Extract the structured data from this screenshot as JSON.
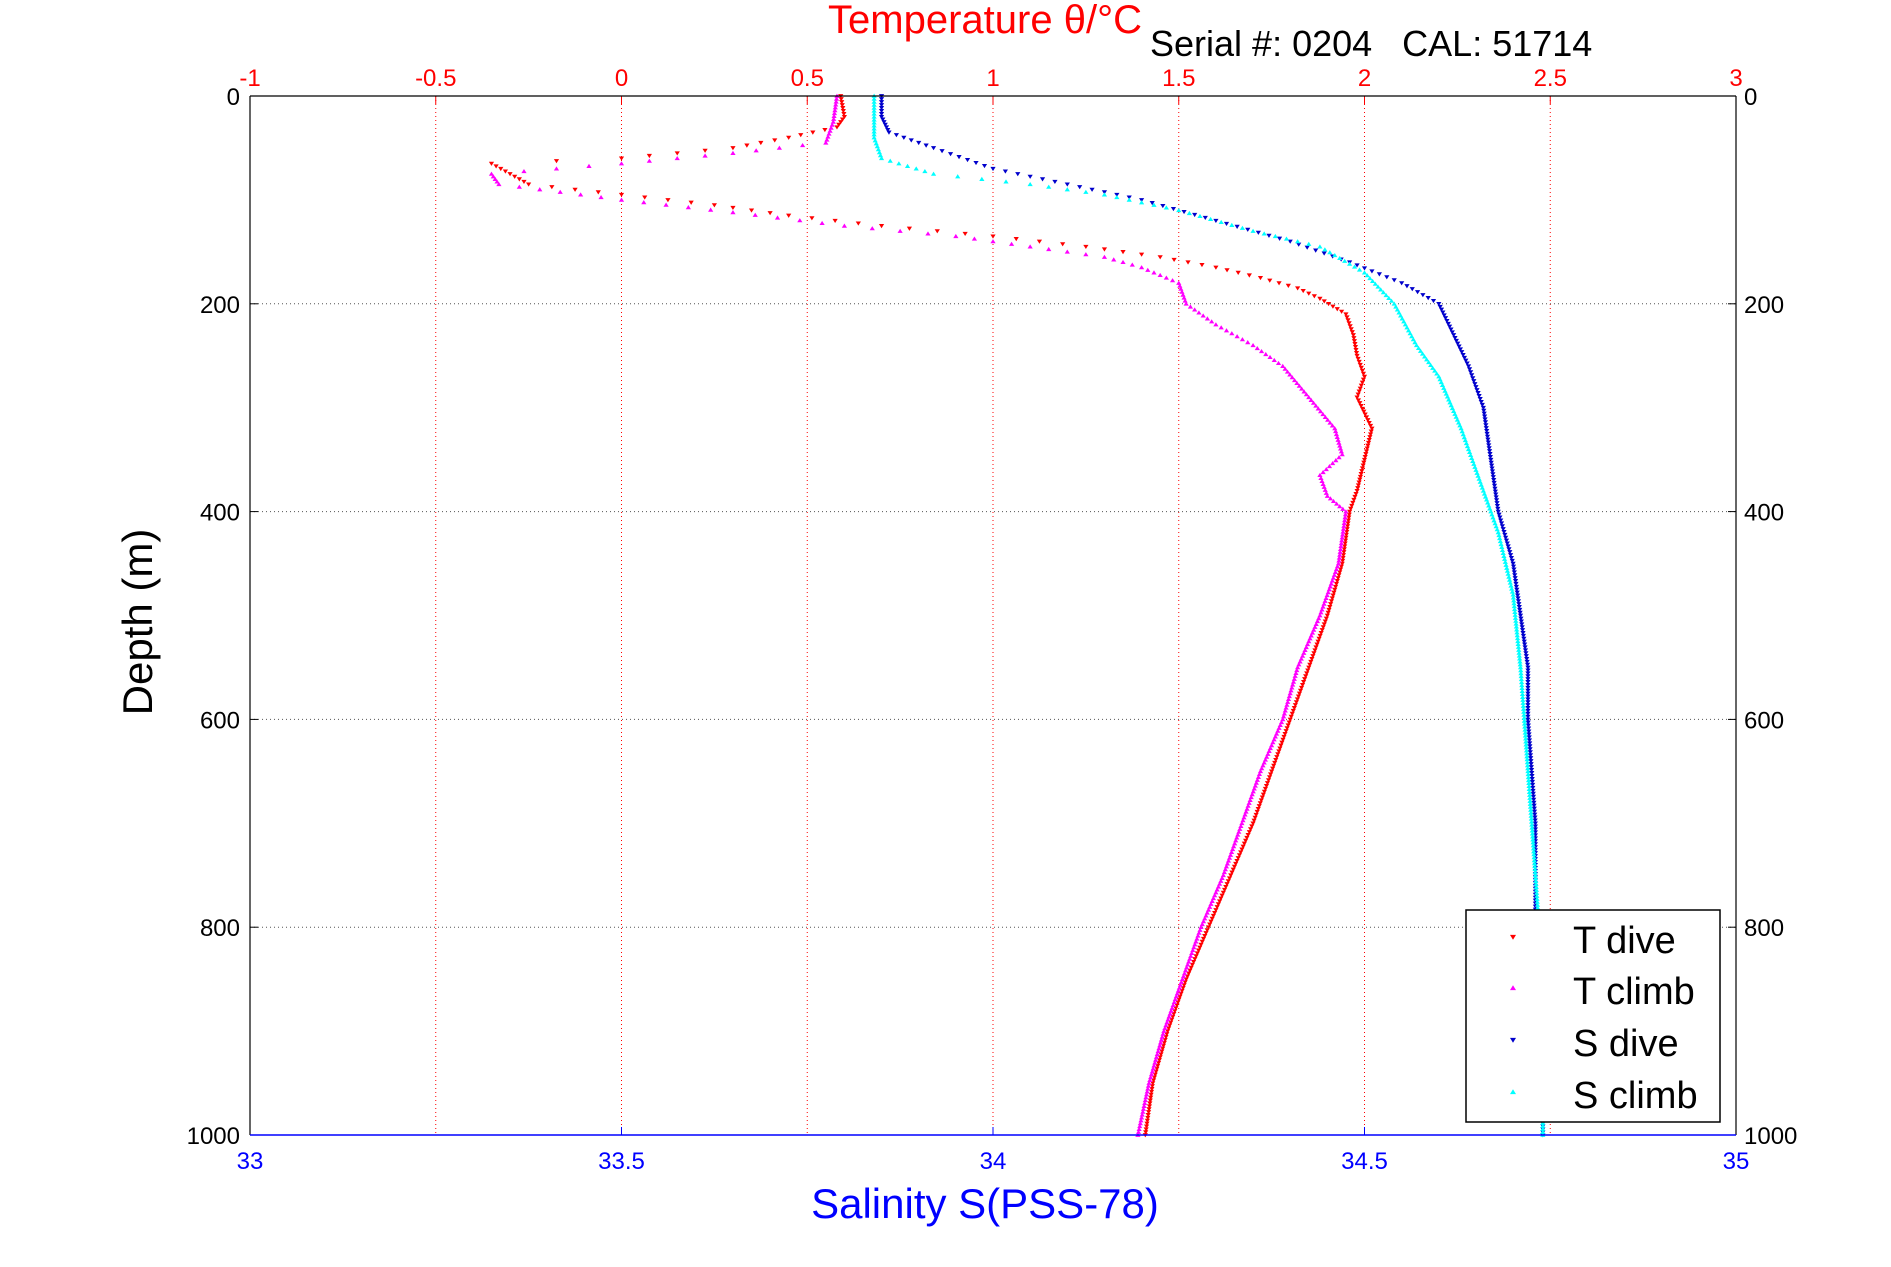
{
  "header": {
    "serial_text": "Serial #: 0204   CAL: 51714"
  },
  "colors": {
    "temperature_axis": "#ff0000",
    "salinity_axis": "#0000ff",
    "t_dive": "#ff0000",
    "t_climb": "#ff00ff",
    "s_dive": "#0000cc",
    "s_climb": "#00ffff",
    "grid": "#555555",
    "frame": "#000000"
  },
  "chart_data": {
    "type": "scatter",
    "title": "Temperature θ/°C",
    "xlabel": "Salinity S(PSS-78)",
    "ylabel": "Depth (m)",
    "grid": true,
    "legend_position": "bottom-right",
    "y_reversed": true,
    "ylim": [
      0,
      1000
    ],
    "yticks": [
      0,
      200,
      400,
      600,
      800,
      1000
    ],
    "ytick_labels": [
      "0",
      "200",
      "400",
      "600",
      "800",
      "1000"
    ],
    "temperature_axis": {
      "position": "top",
      "range": [
        -1,
        3
      ],
      "ticks": [
        -1,
        -0.5,
        0,
        0.5,
        1,
        1.5,
        2,
        2.5,
        3
      ],
      "tick_labels": [
        "-1",
        "-0.5",
        "0",
        "0.5",
        "1",
        "1.5",
        "2",
        "2.5",
        "3"
      ]
    },
    "salinity_axis": {
      "position": "bottom",
      "range": [
        33,
        35
      ],
      "ticks": [
        33,
        33.5,
        34,
        34.5,
        35
      ],
      "tick_labels": [
        "33",
        "33.5",
        "34",
        "34.5",
        "35"
      ]
    },
    "series": [
      {
        "name": "T dive",
        "axis": "temperature",
        "marker": "down-triangle",
        "points": [
          [
            0.59,
            0
          ],
          [
            0.6,
            20
          ],
          [
            0.58,
            30
          ],
          [
            0.45,
            40
          ],
          [
            0.3,
            50
          ],
          [
            0.0,
            60
          ],
          [
            -0.35,
            65
          ],
          [
            -0.3,
            75
          ],
          [
            -0.25,
            85
          ],
          [
            0.0,
            95
          ],
          [
            0.25,
            105
          ],
          [
            0.45,
            115
          ],
          [
            0.7,
            125
          ],
          [
            1.0,
            135
          ],
          [
            1.25,
            145
          ],
          [
            1.45,
            155
          ],
          [
            1.6,
            165
          ],
          [
            1.72,
            175
          ],
          [
            1.82,
            185
          ],
          [
            1.88,
            195
          ],
          [
            1.95,
            210
          ],
          [
            1.97,
            230
          ],
          [
            1.98,
            250
          ],
          [
            2.0,
            270
          ],
          [
            1.98,
            290
          ],
          [
            2.02,
            320
          ],
          [
            2.0,
            350
          ],
          [
            1.98,
            380
          ],
          [
            1.96,
            400
          ],
          [
            1.94,
            450
          ],
          [
            1.9,
            500
          ],
          [
            1.85,
            550
          ],
          [
            1.8,
            600
          ],
          [
            1.75,
            650
          ],
          [
            1.7,
            700
          ],
          [
            1.64,
            750
          ],
          [
            1.58,
            800
          ],
          [
            1.52,
            850
          ],
          [
            1.47,
            900
          ],
          [
            1.43,
            950
          ],
          [
            1.41,
            1000
          ]
        ]
      },
      {
        "name": "T climb",
        "axis": "temperature",
        "marker": "up-triangle",
        "points": [
          [
            0.58,
            0
          ],
          [
            0.57,
            25
          ],
          [
            0.55,
            45
          ],
          [
            0.3,
            55
          ],
          [
            0.0,
            65
          ],
          [
            -0.35,
            75
          ],
          [
            -0.33,
            85
          ],
          [
            0.0,
            100
          ],
          [
            0.3,
            112
          ],
          [
            0.6,
            125
          ],
          [
            0.9,
            135
          ],
          [
            1.1,
            145
          ],
          [
            1.3,
            155
          ],
          [
            1.4,
            165
          ],
          [
            1.5,
            180
          ],
          [
            1.52,
            200
          ],
          [
            1.6,
            220
          ],
          [
            1.7,
            240
          ],
          [
            1.78,
            260
          ],
          [
            1.85,
            290
          ],
          [
            1.92,
            320
          ],
          [
            1.94,
            345
          ],
          [
            1.88,
            365
          ],
          [
            1.9,
            385
          ],
          [
            1.95,
            400
          ],
          [
            1.93,
            450
          ],
          [
            1.88,
            500
          ],
          [
            1.82,
            550
          ],
          [
            1.78,
            600
          ],
          [
            1.72,
            650
          ],
          [
            1.67,
            700
          ],
          [
            1.62,
            750
          ],
          [
            1.56,
            800
          ],
          [
            1.51,
            850
          ],
          [
            1.46,
            900
          ],
          [
            1.42,
            950
          ],
          [
            1.39,
            1000
          ]
        ]
      },
      {
        "name": "S dive",
        "axis": "salinity",
        "marker": "down-triangle",
        "points": [
          [
            33.85,
            0
          ],
          [
            33.85,
            20
          ],
          [
            33.86,
            35
          ],
          [
            33.92,
            50
          ],
          [
            34.0,
            70
          ],
          [
            34.1,
            85
          ],
          [
            34.2,
            100
          ],
          [
            34.3,
            120
          ],
          [
            34.4,
            140
          ],
          [
            34.48,
            160
          ],
          [
            34.55,
            180
          ],
          [
            34.6,
            200
          ],
          [
            34.62,
            230
          ],
          [
            34.64,
            260
          ],
          [
            34.66,
            300
          ],
          [
            34.67,
            350
          ],
          [
            34.68,
            400
          ],
          [
            34.7,
            450
          ],
          [
            34.71,
            500
          ],
          [
            34.72,
            550
          ],
          [
            34.72,
            600
          ],
          [
            34.73,
            700
          ],
          [
            34.73,
            800
          ],
          [
            34.74,
            900
          ],
          [
            34.74,
            1000
          ]
        ]
      },
      {
        "name": "S climb",
        "axis": "salinity",
        "marker": "up-triangle",
        "points": [
          [
            33.84,
            0
          ],
          [
            33.84,
            20
          ],
          [
            33.84,
            40
          ],
          [
            33.85,
            60
          ],
          [
            33.92,
            75
          ],
          [
            34.05,
            85
          ],
          [
            34.15,
            95
          ],
          [
            34.25,
            110
          ],
          [
            34.35,
            130
          ],
          [
            34.44,
            145
          ],
          [
            34.5,
            170
          ],
          [
            34.54,
            200
          ],
          [
            34.57,
            240
          ],
          [
            34.6,
            270
          ],
          [
            34.63,
            320
          ],
          [
            34.66,
            380
          ],
          [
            34.68,
            420
          ],
          [
            34.7,
            480
          ],
          [
            34.71,
            550
          ],
          [
            34.72,
            650
          ],
          [
            34.73,
            750
          ],
          [
            34.74,
            850
          ],
          [
            34.74,
            1000
          ]
        ]
      }
    ]
  }
}
